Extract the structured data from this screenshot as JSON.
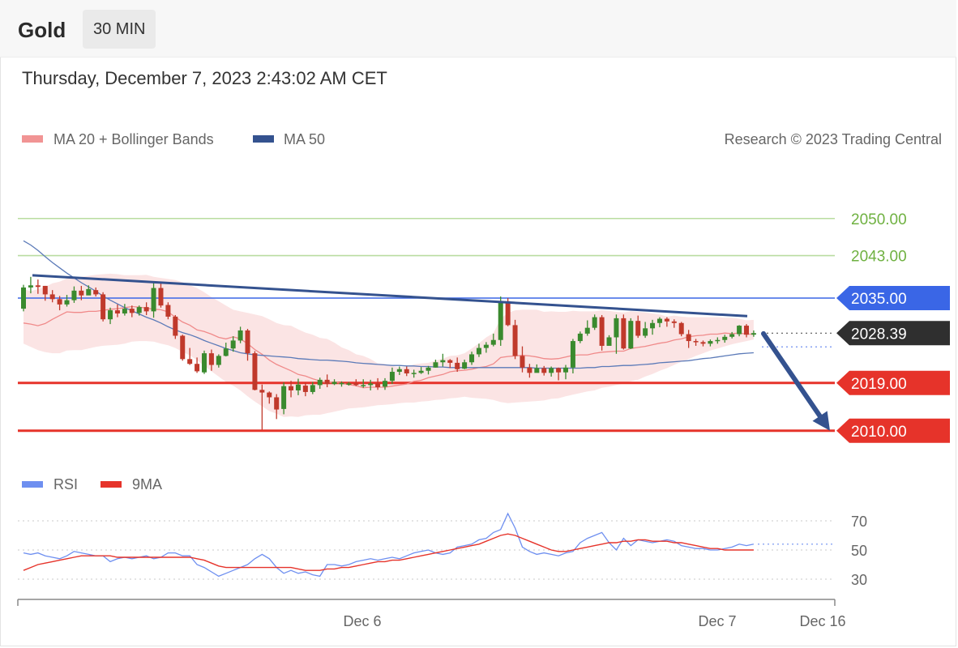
{
  "header": {
    "symbol": "Gold",
    "interval": "30 MIN",
    "timestamp": "Thursday, December 7, 2023 2:43:02 AM CET"
  },
  "legend": {
    "ma20_bb": "MA 20 + Bollinger Bands",
    "ma50": "MA 50",
    "credit": "Research © 2023 Trading Central",
    "rsi": "RSI",
    "rsi_ma": "9MA"
  },
  "colors": {
    "up": "#3a8a2e",
    "down": "#c0392b",
    "bb_fill": "#fbe1e1",
    "ma20": "#f08a8a",
    "ma50": "#5b7ab8",
    "trend": "#34528f",
    "resistance": "#8cc26a",
    "pivot": "#3a66e6",
    "support": "#e6332a",
    "last": "#2f2f2f",
    "rsi": "#6e8ff0",
    "rsi_ma": "#e6332a"
  },
  "chart_data": {
    "type": "candlestick",
    "levels": [
      {
        "value": 2050.0,
        "label": "2050.00",
        "kind": "resistance"
      },
      {
        "value": 2043.0,
        "label": "2043.00",
        "kind": "resistance"
      },
      {
        "value": 2035.0,
        "label": "2035.00",
        "kind": "pivot"
      },
      {
        "value": 2028.39,
        "label": "2028.39",
        "kind": "last"
      },
      {
        "value": 2019.0,
        "label": "2019.00",
        "kind": "support"
      },
      {
        "value": 2010.0,
        "label": "2010.00",
        "kind": "support"
      }
    ],
    "x_ticks": [
      "Dec 6",
      "Dec 7",
      "Dec 16"
    ],
    "trendline": [
      2039.3,
      2031.6
    ],
    "candles": [
      [
        2033.0,
        2037.0,
        2037.5,
        2032.5
      ],
      [
        2037.0,
        2037.4,
        2039.0,
        2035.9
      ],
      [
        2037.4,
        2037.1,
        2038.5,
        2035.8
      ],
      [
        2037.3,
        2035.7,
        2037.3,
        2034.5
      ],
      [
        2035.7,
        2034.8,
        2036.5,
        2034.2
      ],
      [
        2034.8,
        2033.8,
        2035.4,
        2032.7
      ],
      [
        2033.8,
        2034.6,
        2035.6,
        2033.4
      ],
      [
        2034.6,
        2036.4,
        2037.2,
        2034.1
      ],
      [
        2036.4,
        2035.5,
        2037.3,
        2034.6
      ],
      [
        2035.5,
        2036.7,
        2037.4,
        2035.9
      ],
      [
        2036.5,
        2035.7,
        2037.0,
        2035.3
      ],
      [
        2035.7,
        2031.0,
        2036.1,
        2030.6
      ],
      [
        2031.0,
        2032.7,
        2033.2,
        2030.1
      ],
      [
        2032.7,
        2032.1,
        2033.8,
        2031.4
      ],
      [
        2032.1,
        2033.0,
        2033.9,
        2031.7
      ],
      [
        2033.0,
        2032.2,
        2033.6,
        2031.4
      ],
      [
        2032.2,
        2033.3,
        2033.6,
        2031.7
      ],
      [
        2033.3,
        2032.5,
        2034.2,
        2031.8
      ],
      [
        2032.5,
        2036.9,
        2038.1,
        2031.3
      ],
      [
        2036.9,
        2033.6,
        2037.9,
        2033.2
      ],
      [
        2033.7,
        2031.5,
        2034.2,
        2031.0
      ],
      [
        2031.5,
        2027.9,
        2031.8,
        2027.3
      ],
      [
        2027.9,
        2023.5,
        2028.1,
        2023.2
      ],
      [
        2023.5,
        2022.6,
        2025.6,
        2022.4
      ],
      [
        2022.6,
        2021.2,
        2023.8,
        2020.9
      ],
      [
        2021.0,
        2024.6,
        2025.1,
        2020.7
      ],
      [
        2024.6,
        2022.4,
        2025.3,
        2021.3
      ],
      [
        2022.4,
        2024.1,
        2024.4,
        2021.9
      ],
      [
        2024.1,
        2025.5,
        2026.6,
        2024.0
      ],
      [
        2025.5,
        2027.0,
        2027.8,
        2024.9
      ],
      [
        2027.0,
        2028.9,
        2029.6,
        2026.5
      ],
      [
        2028.9,
        2024.6,
        2029.2,
        2023.2
      ],
      [
        2024.6,
        2017.7,
        2025.0,
        2017.6
      ],
      [
        2017.7,
        2017.2,
        2018.7,
        2010.2
      ],
      [
        2017.2,
        2016.3,
        2017.4,
        2015.1
      ],
      [
        2016.3,
        2014.0,
        2016.9,
        2012.2
      ],
      [
        2014.1,
        2018.4,
        2019.1,
        2013.1
      ],
      [
        2018.4,
        2017.6,
        2019.4,
        2016.3
      ],
      [
        2017.6,
        2018.7,
        2019.8,
        2016.7
      ],
      [
        2018.5,
        2017.3,
        2019.1,
        2016.5
      ],
      [
        2017.3,
        2018.6,
        2019.2,
        2016.9
      ],
      [
        2018.6,
        2019.6,
        2020.0,
        2017.9
      ],
      [
        2019.6,
        2018.8,
        2020.6,
        2018.2
      ],
      [
        2018.8,
        2019.2,
        2019.7,
        2018.6
      ],
      [
        2018.9,
        2019.0,
        2019.3,
        2018.3
      ],
      [
        2018.9,
        2018.9,
        2019.2,
        2018.5
      ],
      [
        2018.9,
        2018.6,
        2019.7,
        2018.4
      ],
      [
        2018.6,
        2018.6,
        2019.7,
        2018.1
      ],
      [
        2018.6,
        2018.9,
        2019.6,
        2017.6
      ],
      [
        2018.9,
        2018.2,
        2019.9,
        2017.7
      ],
      [
        2018.3,
        2019.4,
        2019.9,
        2017.7
      ],
      [
        2019.4,
        2021.1,
        2021.9,
        2018.8
      ],
      [
        2021.1,
        2021.6,
        2022.1,
        2020.5
      ],
      [
        2021.6,
        2020.8,
        2022.1,
        2020.3
      ],
      [
        2020.8,
        2020.9,
        2021.5,
        2020.0
      ],
      [
        2020.9,
        2021.3,
        2022.0,
        2020.7
      ],
      [
        2021.3,
        2021.9,
        2022.2,
        2020.6
      ],
      [
        2021.9,
        2022.9,
        2023.4,
        2021.9
      ],
      [
        2022.9,
        2023.3,
        2024.5,
        2022.1
      ],
      [
        2023.3,
        2022.8,
        2023.5,
        2021.8
      ],
      [
        2022.8,
        2021.6,
        2023.8,
        2021.1
      ],
      [
        2021.7,
        2022.9,
        2023.4,
        2021.6
      ],
      [
        2022.9,
        2024.4,
        2024.9,
        2022.4
      ],
      [
        2024.4,
        2025.6,
        2026.4,
        2023.9
      ],
      [
        2025.6,
        2026.2,
        2026.7,
        2024.7
      ],
      [
        2026.2,
        2027.1,
        2028.3,
        2025.9
      ],
      [
        2027.1,
        2034.4,
        2035.3,
        2026.0
      ],
      [
        2034.4,
        2029.9,
        2035.0,
        2029.7
      ],
      [
        2029.9,
        2024.1,
        2030.9,
        2023.5
      ],
      [
        2024.1,
        2021.9,
        2025.9,
        2021.0
      ],
      [
        2021.9,
        2020.9,
        2022.6,
        2020.0
      ],
      [
        2020.9,
        2021.8,
        2022.5,
        2021.3
      ],
      [
        2021.8,
        2020.9,
        2022.2,
        2020.4
      ],
      [
        2020.9,
        2021.8,
        2022.1,
        2020.2
      ],
      [
        2021.8,
        2021.0,
        2021.9,
        2019.5
      ],
      [
        2021.0,
        2021.9,
        2022.4,
        2019.7
      ],
      [
        2021.9,
        2026.9,
        2027.3,
        2020.8
      ],
      [
        2026.9,
        2028.3,
        2028.7,
        2026.5
      ],
      [
        2028.3,
        2029.4,
        2030.8,
        2027.9
      ],
      [
        2029.4,
        2031.4,
        2031.9,
        2029.0
      ],
      [
        2031.4,
        2026.0,
        2031.8,
        2025.1
      ],
      [
        2026.0,
        2027.6,
        2028.0,
        2026.4
      ],
      [
        2027.6,
        2031.2,
        2031.9,
        2024.5
      ],
      [
        2031.2,
        2025.5,
        2031.9,
        2025.3
      ],
      [
        2025.5,
        2030.7,
        2031.2,
        2025.4
      ],
      [
        2030.7,
        2027.9,
        2031.7,
        2027.5
      ],
      [
        2027.9,
        2029.3,
        2030.5,
        2027.5
      ],
      [
        2029.3,
        2030.3,
        2030.9,
        2028.1
      ],
      [
        2030.3,
        2031.1,
        2031.4,
        2029.5
      ],
      [
        2031.1,
        2030.6,
        2031.4,
        2029.6
      ],
      [
        2030.6,
        2030.3,
        2031.0,
        2029.4
      ],
      [
        2030.3,
        2028.2,
        2030.5,
        2027.8
      ],
      [
        2028.2,
        2026.9,
        2029.0,
        2025.6
      ],
      [
        2026.9,
        2026.7,
        2027.3,
        2026.0
      ],
      [
        2026.7,
        2026.4,
        2027.0,
        2025.9
      ],
      [
        2026.4,
        2026.9,
        2027.2,
        2025.9
      ],
      [
        2026.9,
        2027.1,
        2027.6,
        2026.4
      ],
      [
        2027.1,
        2027.7,
        2028.1,
        2026.6
      ],
      [
        2027.7,
        2028.2,
        2028.6,
        2027.4
      ],
      [
        2028.2,
        2029.8,
        2029.9,
        2027.8
      ],
      [
        2029.8,
        2028.1,
        2030.1,
        2027.6
      ],
      [
        2028.1,
        2028.4,
        2028.9,
        2027.7
      ]
    ],
    "ma20": [
      2030.3,
      2030.1,
      2029.8,
      2030.2,
      2031.0,
      2031.7,
      2032.4,
      2032.3,
      2032.3,
      2032.5,
      2032.5,
      2032.7,
      2032.9,
      2033.0,
      2033.2,
      2033.4,
      2033.3,
      2033.1,
      2032.9,
      2032.8,
      2032.4,
      2031.4,
      2030.5,
      2029.9,
      2029.0,
      2028.7,
      2028.2,
      2027.6,
      2027.3,
      2027.7,
      2027.3,
      2026.4,
      2025.3,
      2024.4,
      2023.3,
      2022.5,
      2021.9,
      2021.3,
      2020.6,
      2020.3,
      2019.8,
      2019.4,
      2019.0,
      2019.2,
      2018.9,
      2018.7,
      2018.5,
      2018.1,
      2018.2,
      2018.2,
      2018.2,
      2018.4,
      2018.6,
      2018.8,
      2019.3,
      2019.5,
      2020.0,
      2020.3,
      2020.6,
      2021.1,
      2021.3,
      2021.4,
      2021.6,
      2021.9,
      2022.1,
      2022.6,
      2023.8,
      2024.0,
      2024.1,
      2024.2,
      2024.1,
      2023.9,
      2023.6,
      2023.5,
      2023.6,
      2023.9,
      2024.2,
      2024.3,
      2024.3,
      2024.6,
      2024.8,
      2024.9,
      2025.0,
      2025.0,
      2025.5,
      2025.7,
      2025.9,
      2026.2,
      2026.5,
      2026.7,
      2027.1,
      2027.3,
      2027.7,
      2027.9,
      2028.0,
      2028.2,
      2028.2,
      2028.4,
      2028.3,
      2028.4,
      2028.2,
      2028.2
    ],
    "bb_upper": [
      2036.7,
      2036.3,
      2036.7,
      2037.1,
      2037.8,
      2038.1,
      2038.7,
      2038.8,
      2039.0,
      2039.2,
      2039.4,
      2039.5,
      2039.6,
      2039.5,
      2039.3,
      2039.3,
      2039.3,
      2039.4,
      2039.0,
      2038.8,
      2038.6,
      2038.4,
      2038.0,
      2037.4,
      2036.9,
      2036.1,
      2035.2,
      2034.4,
      2033.6,
      2032.8,
      2032.5,
      2032.2,
      2031.9,
      2031.6,
      2031.0,
      2030.3,
      2029.9,
      2029.8,
      2029.1,
      2028.5,
      2028.1,
      2027.5,
      2027.3,
      2026.6,
      2025.7,
      2025.2,
      2024.4,
      2024.1,
      2023.5,
      2022.7,
      2022.6,
      2022.2,
      2021.9,
      2022.1,
      2022.5,
      2022.7,
      2022.8,
      2023.2,
      2023.6,
      2024.1,
      2024.2,
      2024.6,
      2025.5,
      2026.5,
      2027.6,
      2028.4,
      2031.1,
      2032.2,
      2032.7,
      2032.8,
      2032.8,
      2032.8,
      2032.4,
      2032.5,
      2032.4,
      2032.4,
      2032.6,
      2032.5,
      2032.5,
      2032.5,
      2032.7,
      2032.6,
      2032.4,
      2032.3,
      2032.5,
      2032.4,
      2032.3,
      2032.1,
      2031.9,
      2031.5,
      2031.7,
      2031.5,
      2031.4,
      2031.4,
      2031.4,
      2031.4,
      2031.4,
      2031.3,
      2031.3,
      2031.1,
      2030.8,
      2030.9
    ],
    "bb_lower": [
      2026.4,
      2025.8,
      2025.2,
      2024.8,
      2024.6,
      2024.6,
      2025.1,
      2025.2,
      2025.2,
      2025.5,
      2025.8,
      2026.0,
      2026.1,
      2026.2,
      2026.4,
      2026.8,
      2026.9,
      2026.9,
      2026.8,
      2026.4,
      2026.1,
      2025.6,
      2024.9,
      2024.2,
      2023.3,
      2022.2,
      2021.2,
      2020.2,
      2019.2,
      2018.5,
      2017.6,
      2016.5,
      2015.5,
      2014.6,
      2013.7,
      2013.2,
      2012.6,
      2012.7,
      2012.6,
      2012.9,
      2013.0,
      2013.0,
      2013.3,
      2013.6,
      2013.9,
      2014.2,
      2014.3,
      2014.4,
      2014.6,
      2014.8,
      2014.9,
      2015.0,
      2015.2,
      2015.3,
      2015.3,
      2015.5,
      2015.6,
      2015.8,
      2015.9,
      2016.1,
      2016.2,
      2016.4,
      2016.2,
      2016.1,
      2016.0,
      2015.8,
      2015.4,
      2015.2,
      2015.3,
      2015.4,
      2015.5,
      2015.6,
      2015.7,
      2016.0,
      2016.1,
      2016.5,
      2016.8,
      2017.1,
      2017.4,
      2017.6,
      2018.1,
      2018.3,
      2018.6,
      2018.9,
      2019.3,
      2019.6,
      2020.2,
      2020.7,
      2021.3,
      2021.8,
      2022.4,
      2023.0,
      2023.5,
      2024.1,
      2024.6,
      2025.1,
      2025.5,
      2025.9,
      2026.3,
      2026.6,
      2026.9,
      2027.2
    ],
    "ma50": [
      2045.8,
      2045.0,
      2044.0,
      2042.8,
      2041.7,
      2040.7,
      2039.7,
      2038.8,
      2037.9,
      2037.1,
      2036.3,
      2035.4,
      2034.6,
      2033.9,
      2033.2,
      2032.6,
      2032.0,
      2031.4,
      2030.9,
      2030.3,
      2029.6,
      2029.0,
      2028.5,
      2028.1,
      2027.6,
      2027.0,
      2026.5,
      2026.0,
      2025.5,
      2025.1,
      2024.7,
      2024.5,
      2024.3,
      2024.2,
      2024.1,
      2024.0,
      2023.9,
      2023.8,
      2023.6,
      2023.5,
      2023.4,
      2023.3,
      2023.3,
      2023.2,
      2023.1,
      2023.0,
      2022.8,
      2022.7,
      2022.6,
      2022.5,
      2022.4,
      2022.3,
      2022.3,
      2022.2,
      2022.2,
      2022.1,
      2022.1,
      2022.0,
      2022.0,
      2021.9,
      2021.9,
      2021.9,
      2021.9,
      2021.9,
      2021.9,
      2021.9,
      2021.9,
      2021.9,
      2021.9,
      2021.9,
      2021.9,
      2021.8,
      2021.8,
      2021.8,
      2021.8,
      2021.8,
      2021.8,
      2021.8,
      2021.9,
      2021.9,
      2022.1,
      2022.1,
      2022.2,
      2022.3,
      2022.3,
      2022.4,
      2022.5,
      2022.6,
      2022.8,
      2022.9,
      2023.0,
      2023.1,
      2023.2,
      2023.4,
      2023.6,
      2023.7,
      2023.9,
      2024.1,
      2024.3,
      2024.5,
      2024.6,
      2024.7
    ],
    "rsi": {
      "ticks": [
        70,
        50,
        30
      ],
      "rsi": [
        48,
        47,
        48,
        46,
        45,
        44,
        46,
        49,
        48,
        47,
        46,
        46,
        42,
        44,
        45,
        44,
        45,
        46,
        44,
        45,
        48,
        48,
        46,
        46,
        40,
        38,
        35,
        32,
        34,
        36,
        38,
        40,
        44,
        47,
        44,
        38,
        34,
        36,
        34,
        35,
        33,
        32,
        40,
        40,
        39,
        40,
        42,
        43,
        44,
        43,
        44,
        45,
        44,
        46,
        48,
        49,
        50,
        48,
        47,
        48,
        52,
        53,
        54,
        57,
        58,
        62,
        64,
        75,
        65,
        52,
        49,
        47,
        48,
        47,
        46,
        48,
        49,
        55,
        58,
        60,
        62,
        55,
        50,
        58,
        53,
        57,
        56,
        55,
        56,
        57,
        56,
        53,
        52,
        51,
        51,
        50,
        50,
        51,
        52,
        54,
        53,
        54
      ],
      "ma9": [
        36,
        38,
        40,
        41,
        42,
        43,
        44,
        45,
        46,
        46,
        46,
        46,
        46,
        45,
        45,
        45,
        45,
        45,
        45,
        45,
        45,
        45,
        45,
        45,
        44,
        43,
        41,
        39,
        38,
        38,
        38,
        38,
        38,
        38,
        38,
        38,
        38,
        38,
        37,
        36,
        36,
        36,
        37,
        37,
        38,
        38,
        39,
        40,
        41,
        42,
        42,
        43,
        43,
        44,
        45,
        46,
        47,
        48,
        49,
        50,
        51,
        52,
        53,
        54,
        56,
        58,
        60,
        61,
        60,
        58,
        56,
        54,
        52,
        50,
        49,
        49,
        50,
        51,
        52,
        53,
        54,
        55,
        55,
        56,
        56,
        57,
        57,
        56,
        56,
        56,
        55,
        55,
        54,
        53,
        52,
        51,
        51,
        50,
        50,
        50,
        50,
        50
      ]
    }
  }
}
